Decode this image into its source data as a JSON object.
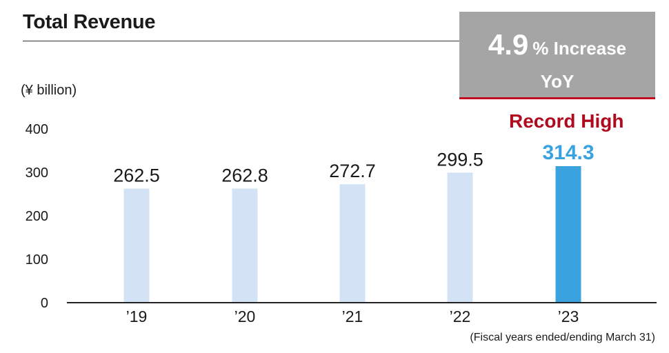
{
  "title": "Total Revenue",
  "unit_label": "(¥ billion)",
  "footnote": "(Fiscal years ended/ending March 31)",
  "callout": {
    "value": "4.9",
    "suffix": "% Increase",
    "line2": "YoY",
    "bg_color": "#a5a5a5",
    "border_color": "#c00d23"
  },
  "record_label": "Record High",
  "colors": {
    "bar": "#d3e3f5",
    "bar_highlight": "#3aa3df",
    "record_text": "#b00a1f"
  },
  "chart_data": {
    "type": "bar",
    "title": "Total Revenue",
    "ylabel": "(¥ billion)",
    "xlabel": "",
    "categories": [
      "’19",
      "’20",
      "’21",
      "’22",
      "’23"
    ],
    "values": [
      262.5,
      262.8,
      272.7,
      299.5,
      314.3
    ],
    "value_labels": [
      "262.5",
      "262.8",
      "272.7",
      "299.5",
      "314.3"
    ],
    "highlight_index": 4,
    "ylim": [
      0,
      400
    ],
    "yticks": [
      0,
      100,
      200,
      300,
      400
    ],
    "grid": false,
    "legend": "none"
  }
}
